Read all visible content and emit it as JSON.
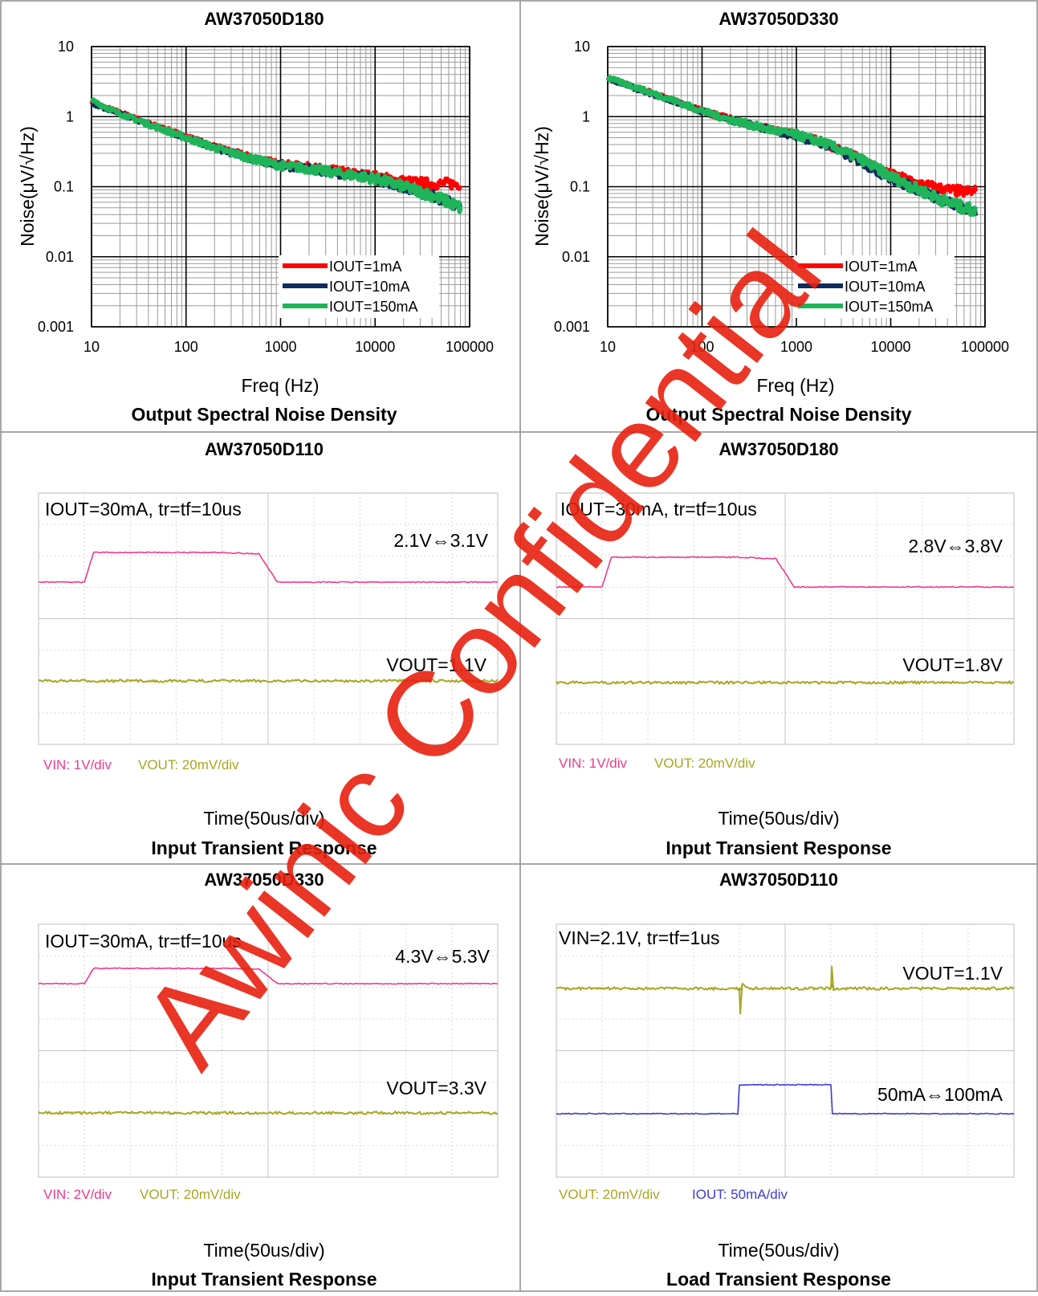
{
  "watermark": "Awinic Confidential",
  "colors": {
    "red": "#ff0000",
    "navy": "#102a5c",
    "green": "#1fb45a",
    "vin": "#ee3a8c",
    "vout": "#a8a620",
    "iout": "#3b3bd6",
    "grid_heavy": "#000000",
    "grid_light": "#9a9a9a",
    "scope_grid": "#d6d6d6",
    "watermark": "#e8200e"
  },
  "panels": [
    {
      "title": "AW37050D180"
    },
    {
      "title": "AW37050D330"
    },
    {
      "title": "AW37050D110"
    },
    {
      "title": "AW37050D180"
    },
    {
      "title": "AW37050D330"
    },
    {
      "title": "AW37050D110"
    }
  ],
  "chart_data": [
    {
      "type": "line",
      "title": "AW37050D180",
      "caption": "Output Spectral Noise Density",
      "xlabel": "Freq (Hz)",
      "ylabel": "Noise(μV/√Hz)",
      "xscale": "log",
      "yscale": "log",
      "xlim": [
        10,
        100000
      ],
      "ylim": [
        0.001,
        10
      ],
      "xticks": [
        "10",
        "100",
        "1000",
        "10000",
        "100000"
      ],
      "yticks": [
        "10",
        "1",
        "0.1",
        "0.01",
        "0.001"
      ],
      "grid": true,
      "legend": "bottom-right",
      "series": [
        {
          "name": "IOUT=1mA",
          "color": "red",
          "x": [
            10,
            20,
            50,
            100,
            200,
            500,
            1000,
            2000,
            5000,
            10000,
            20000,
            40000,
            60000,
            80000
          ],
          "y": [
            1.6,
            1.15,
            0.72,
            0.52,
            0.37,
            0.26,
            0.21,
            0.19,
            0.16,
            0.14,
            0.12,
            0.11,
            0.11,
            0.11
          ]
        },
        {
          "name": "IOUT=10mA",
          "color": "navy",
          "x": [
            10,
            20,
            50,
            100,
            200,
            500,
            1000,
            2000,
            5000,
            10000,
            20000,
            40000,
            60000,
            80000
          ],
          "y": [
            1.55,
            1.1,
            0.7,
            0.5,
            0.36,
            0.25,
            0.2,
            0.18,
            0.15,
            0.13,
            0.1,
            0.075,
            0.06,
            0.05
          ]
        },
        {
          "name": "IOUT=150mA",
          "color": "green",
          "x": [
            10,
            20,
            50,
            100,
            200,
            500,
            1000,
            2000,
            5000,
            10000,
            20000,
            40000,
            60000,
            80000
          ],
          "y": [
            1.7,
            1.1,
            0.7,
            0.5,
            0.36,
            0.25,
            0.2,
            0.18,
            0.15,
            0.13,
            0.1,
            0.075,
            0.06,
            0.05
          ]
        }
      ]
    },
    {
      "type": "line",
      "title": "AW37050D330",
      "caption": "Output Spectral Noise Density",
      "xlabel": "Freq (Hz)",
      "ylabel": "Noise(μV/√Hz)",
      "xscale": "log",
      "yscale": "log",
      "xlim": [
        10,
        100000
      ],
      "ylim": [
        0.001,
        10
      ],
      "xticks": [
        "10",
        "100",
        "1000",
        "10000",
        "100000"
      ],
      "yticks": [
        "10",
        "1",
        "0.1",
        "0.01",
        "0.001"
      ],
      "grid": true,
      "legend": "bottom-right",
      "series": [
        {
          "name": "IOUT=1mA",
          "color": "red",
          "x": [
            10,
            20,
            50,
            100,
            200,
            500,
            1000,
            2000,
            5000,
            10000,
            20000,
            40000,
            60000,
            80000
          ],
          "y": [
            3.6,
            2.6,
            1.7,
            1.2,
            0.92,
            0.68,
            0.55,
            0.42,
            0.24,
            0.15,
            0.11,
            0.09,
            0.085,
            0.085
          ]
        },
        {
          "name": "IOUT=10mA",
          "color": "navy",
          "x": [
            10,
            20,
            50,
            100,
            200,
            500,
            1000,
            2000,
            5000,
            10000,
            20000,
            40000,
            60000,
            80000
          ],
          "y": [
            3.5,
            2.5,
            1.65,
            1.2,
            0.9,
            0.66,
            0.53,
            0.4,
            0.22,
            0.13,
            0.09,
            0.06,
            0.05,
            0.045
          ]
        },
        {
          "name": "IOUT=150mA",
          "color": "green",
          "x": [
            10,
            20,
            50,
            100,
            200,
            500,
            1000,
            2000,
            5000,
            10000,
            20000,
            40000,
            60000,
            80000
          ],
          "y": [
            3.6,
            2.6,
            1.7,
            1.2,
            0.9,
            0.66,
            0.55,
            0.42,
            0.24,
            0.14,
            0.09,
            0.06,
            0.05,
            0.045
          ]
        }
      ]
    },
    {
      "type": "line",
      "title": "AW37050D110",
      "caption": "Input Transient Response",
      "xlabel": "Time(50us/div)",
      "condition": "IOUT=30mA, tr=tf=10us",
      "label1": "2.1V⇔3.1V",
      "label2": "VOUT=1.1V",
      "scale1": "VIN: 1V/div",
      "scale2": "VOUT: 20mV/div",
      "series": [
        {
          "name": "VIN",
          "color": "vin",
          "x": [
            0,
            50,
            60,
            200,
            240,
            260,
            500
          ],
          "y": [
            0,
            0,
            1,
            1,
            0.95,
            0,
            0
          ]
        },
        {
          "name": "VOUT",
          "color": "vout",
          "x": [
            0,
            500
          ],
          "y": [
            0,
            0
          ]
        }
      ]
    },
    {
      "type": "line",
      "title": "AW37050D180",
      "caption": "Input Transient Response",
      "xlabel": "Time(50us/div)",
      "condition": "IOUT=30mA, tr=tf=10us",
      "label1": "2.8V⇔3.8V",
      "label2": "VOUT=1.8V",
      "scale1": "VIN: 1V/div",
      "scale2": "VOUT: 20mV/div",
      "series": [
        {
          "name": "VIN",
          "color": "vin",
          "x": [
            0,
            50,
            60,
            200,
            240,
            260,
            500
          ],
          "y": [
            0,
            0,
            1,
            1,
            0.95,
            0,
            0
          ]
        },
        {
          "name": "VOUT",
          "color": "vout",
          "x": [
            0,
            500
          ],
          "y": [
            0,
            0
          ]
        }
      ]
    },
    {
      "type": "line",
      "title": "AW37050D330",
      "caption": "Input Transient Response",
      "xlabel": "Time(50us/div)",
      "condition": "IOUT=30mA, tr=tf=10us",
      "label1": "4.3V⇔5.3V",
      "label2": "VOUT=3.3V",
      "scale1": "VIN: 2V/div",
      "scale2": "VOUT: 20mV/div",
      "series": [
        {
          "name": "VIN",
          "color": "vin",
          "x": [
            0,
            50,
            60,
            200,
            240,
            260,
            500
          ],
          "y": [
            0,
            0,
            1,
            1,
            0.95,
            0,
            0
          ]
        },
        {
          "name": "VOUT",
          "color": "vout",
          "x": [
            0,
            500
          ],
          "y": [
            0,
            0
          ]
        }
      ]
    },
    {
      "type": "line",
      "title": "AW37050D110",
      "caption": "Load Transient Response",
      "xlabel": "Time(50us/div)",
      "condition": "VIN=2.1V, tr=tf=1us",
      "label1": "VOUT=1.1V",
      "label2": "50mA⇔100mA",
      "scale1": "VOUT: 20mV/div",
      "scale2": "IOUT: 50mA/div",
      "series": [
        {
          "name": "VOUT",
          "color": "vout",
          "x": [
            0,
            200,
            201,
            202,
            210,
            300,
            301,
            302,
            310,
            500
          ],
          "y": [
            0,
            0,
            -0.35,
            0.1,
            0,
            0,
            0.35,
            -0.05,
            0,
            0
          ]
        },
        {
          "name": "IOUT",
          "color": "iout",
          "x": [
            0,
            199,
            200,
            300,
            301,
            500
          ],
          "y": [
            0,
            0,
            1,
            1,
            0,
            0
          ]
        }
      ]
    }
  ]
}
